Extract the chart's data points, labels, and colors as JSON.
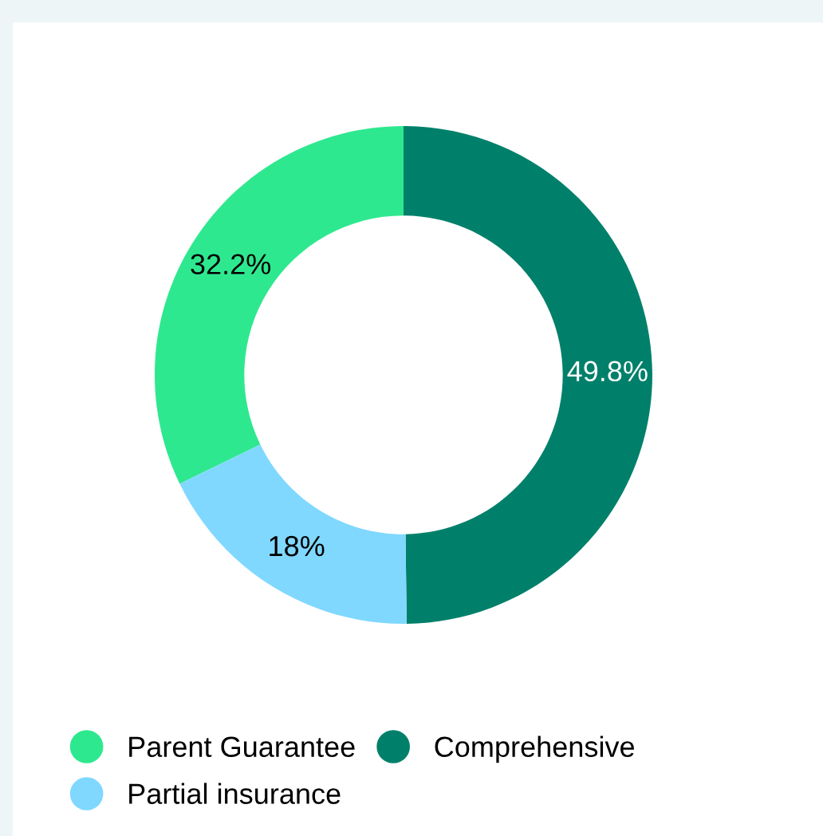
{
  "chart_data": {
    "type": "donut",
    "categories": [
      "Parent Guarantee",
      "Comprehensive",
      "Partial insurance"
    ],
    "values": [
      32.2,
      49.8,
      18
    ],
    "colors": [
      "#2ee88f",
      "#00806a",
      "#80d8ff"
    ],
    "value_labels": [
      "32.2%",
      "49.8%",
      "18%"
    ],
    "legend": "bottom"
  }
}
